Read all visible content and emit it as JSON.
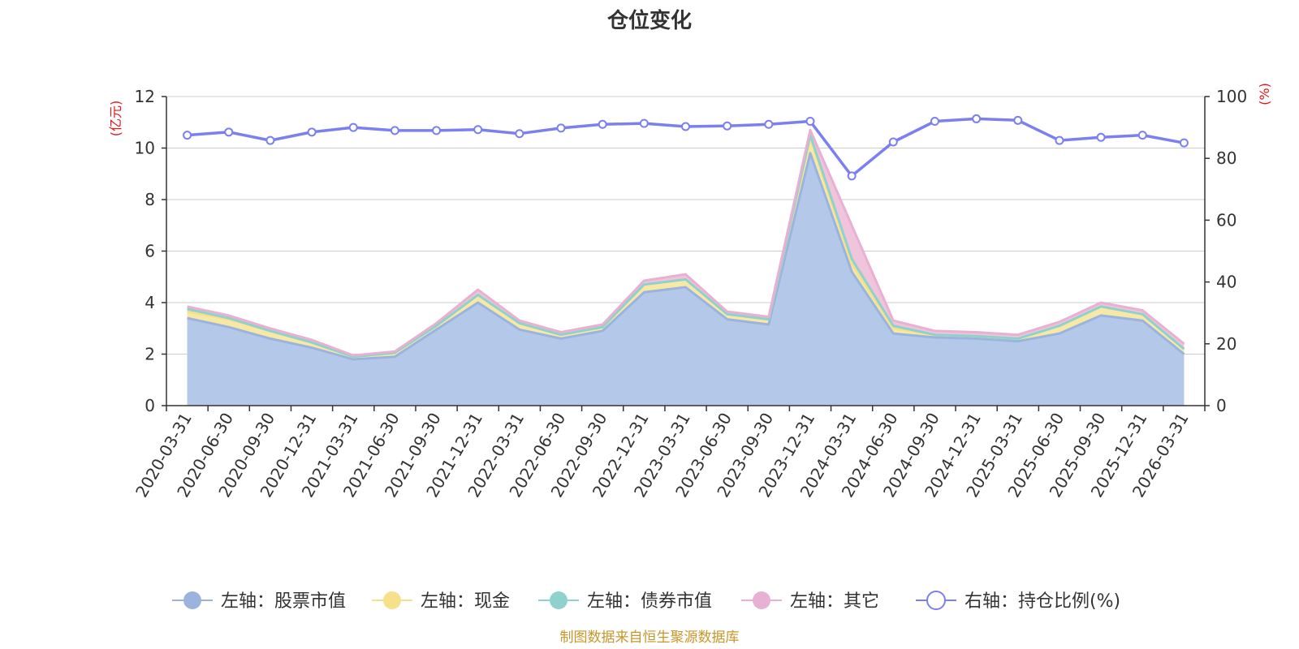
{
  "chart_data": {
    "type": "area",
    "title": "仓位变化",
    "left_unit": "(亿元)",
    "right_unit": "(%)",
    "categories": [
      "2020-03-31",
      "2020-06-30",
      "2020-09-30",
      "2020-12-31",
      "2021-03-31",
      "2021-06-30",
      "2021-09-30",
      "2021-12-31",
      "2022-03-31",
      "2022-06-30",
      "2022-09-30",
      "2022-12-31",
      "2023-03-31",
      "2023-06-30",
      "2023-09-30",
      "2023-12-31",
      "2024-03-31",
      "2024-06-30",
      "2024-09-30",
      "2024-12-31",
      "2025-03-31",
      "2025-06-30",
      "2025-09-30",
      "2025-12-31",
      "2026-03-31"
    ],
    "y_left": {
      "min": 0,
      "max": 12,
      "ticks": [
        0,
        2,
        4,
        6,
        8,
        10,
        12
      ]
    },
    "y_right": {
      "min": 0,
      "max": 100,
      "ticks": [
        0,
        20,
        40,
        60,
        80,
        100
      ]
    },
    "grid": true,
    "legend_position": "bottom",
    "series": [
      {
        "name": "左轴：股票市值",
        "axis": "left",
        "stacked": true,
        "fill": "#b4c8ea",
        "line": "#9ab4de",
        "values": [
          3.4,
          3.05,
          2.6,
          2.25,
          1.8,
          1.9,
          2.95,
          4.0,
          2.95,
          2.6,
          2.9,
          4.4,
          4.6,
          3.35,
          3.15,
          9.8,
          5.2,
          2.8,
          2.65,
          2.6,
          2.5,
          2.8,
          3.5,
          3.3,
          2.0
        ]
      },
      {
        "name": "左轴：现金",
        "axis": "left",
        "stacked": true,
        "fill": "#f8e8a6",
        "line": "#f7e08a",
        "values": [
          0.25,
          0.3,
          0.3,
          0.2,
          0.1,
          0.15,
          0.15,
          0.3,
          0.25,
          0.15,
          0.15,
          0.3,
          0.3,
          0.2,
          0.2,
          0.6,
          0.3,
          0.2,
          0.1,
          0.1,
          0.1,
          0.3,
          0.35,
          0.25,
          0.2
        ]
      },
      {
        "name": "左轴：债券市值",
        "axis": "left",
        "stacked": true,
        "fill": "#aadad8",
        "line": "#8fd1cc",
        "values": [
          0.1,
          0.05,
          0,
          0,
          0,
          0,
          0,
          0,
          0,
          0,
          0,
          0,
          0,
          0,
          0,
          0.1,
          0.2,
          0.1,
          0,
          0,
          0,
          0,
          0,
          0,
          0
        ]
      },
      {
        "name": "左轴：其它",
        "axis": "left",
        "stacked": true,
        "fill": "#efc4dc",
        "line": "#e8b0d2",
        "values": [
          0.1,
          0.1,
          0.1,
          0.1,
          0.05,
          0.05,
          0.1,
          0.2,
          0.1,
          0.1,
          0.1,
          0.15,
          0.2,
          0.1,
          0.1,
          0.2,
          1.3,
          0.2,
          0.15,
          0.15,
          0.15,
          0.15,
          0.15,
          0.15,
          0.2
        ]
      },
      {
        "name": "右轴：持仓比例(%)",
        "axis": "right",
        "type": "line",
        "line": "#7b7ff0",
        "values": [
          87.5,
          88.5,
          85.8,
          88.5,
          90,
          89,
          89,
          89.3,
          88,
          89.8,
          91,
          91.3,
          90.3,
          90.5,
          91,
          92,
          74.3,
          85.3,
          92,
          92.8,
          92.3,
          85.8,
          86.8,
          87.5,
          85
        ]
      }
    ],
    "source": "制图数据来自恒生聚源数据库"
  }
}
